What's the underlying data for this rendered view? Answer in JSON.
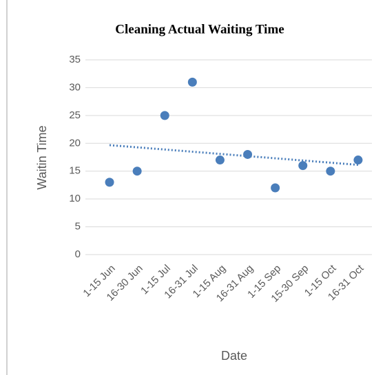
{
  "chart_data": {
    "type": "scatter",
    "title": "Cleaning Actual Waiting Time",
    "x_label": "Date",
    "y_label": "Waitin Time",
    "categories": [
      "1-15 Jun",
      "16-30 Jun",
      "1-15 Jul",
      "16-31 Jul",
      "1-15 Aug",
      "16-31 Aug",
      "1-15 Sep",
      "15-30 Sep",
      "1-15 Oct",
      "16-31 Oct"
    ],
    "values": [
      13,
      15,
      25,
      31,
      17,
      18,
      12,
      16,
      15,
      17
    ],
    "color": "#4a7ebb",
    "ylim": [
      0,
      35
    ],
    "yticks": [
      0,
      5,
      10,
      15,
      20,
      25,
      30,
      35
    ],
    "grid": true,
    "trendline": "linear"
  }
}
